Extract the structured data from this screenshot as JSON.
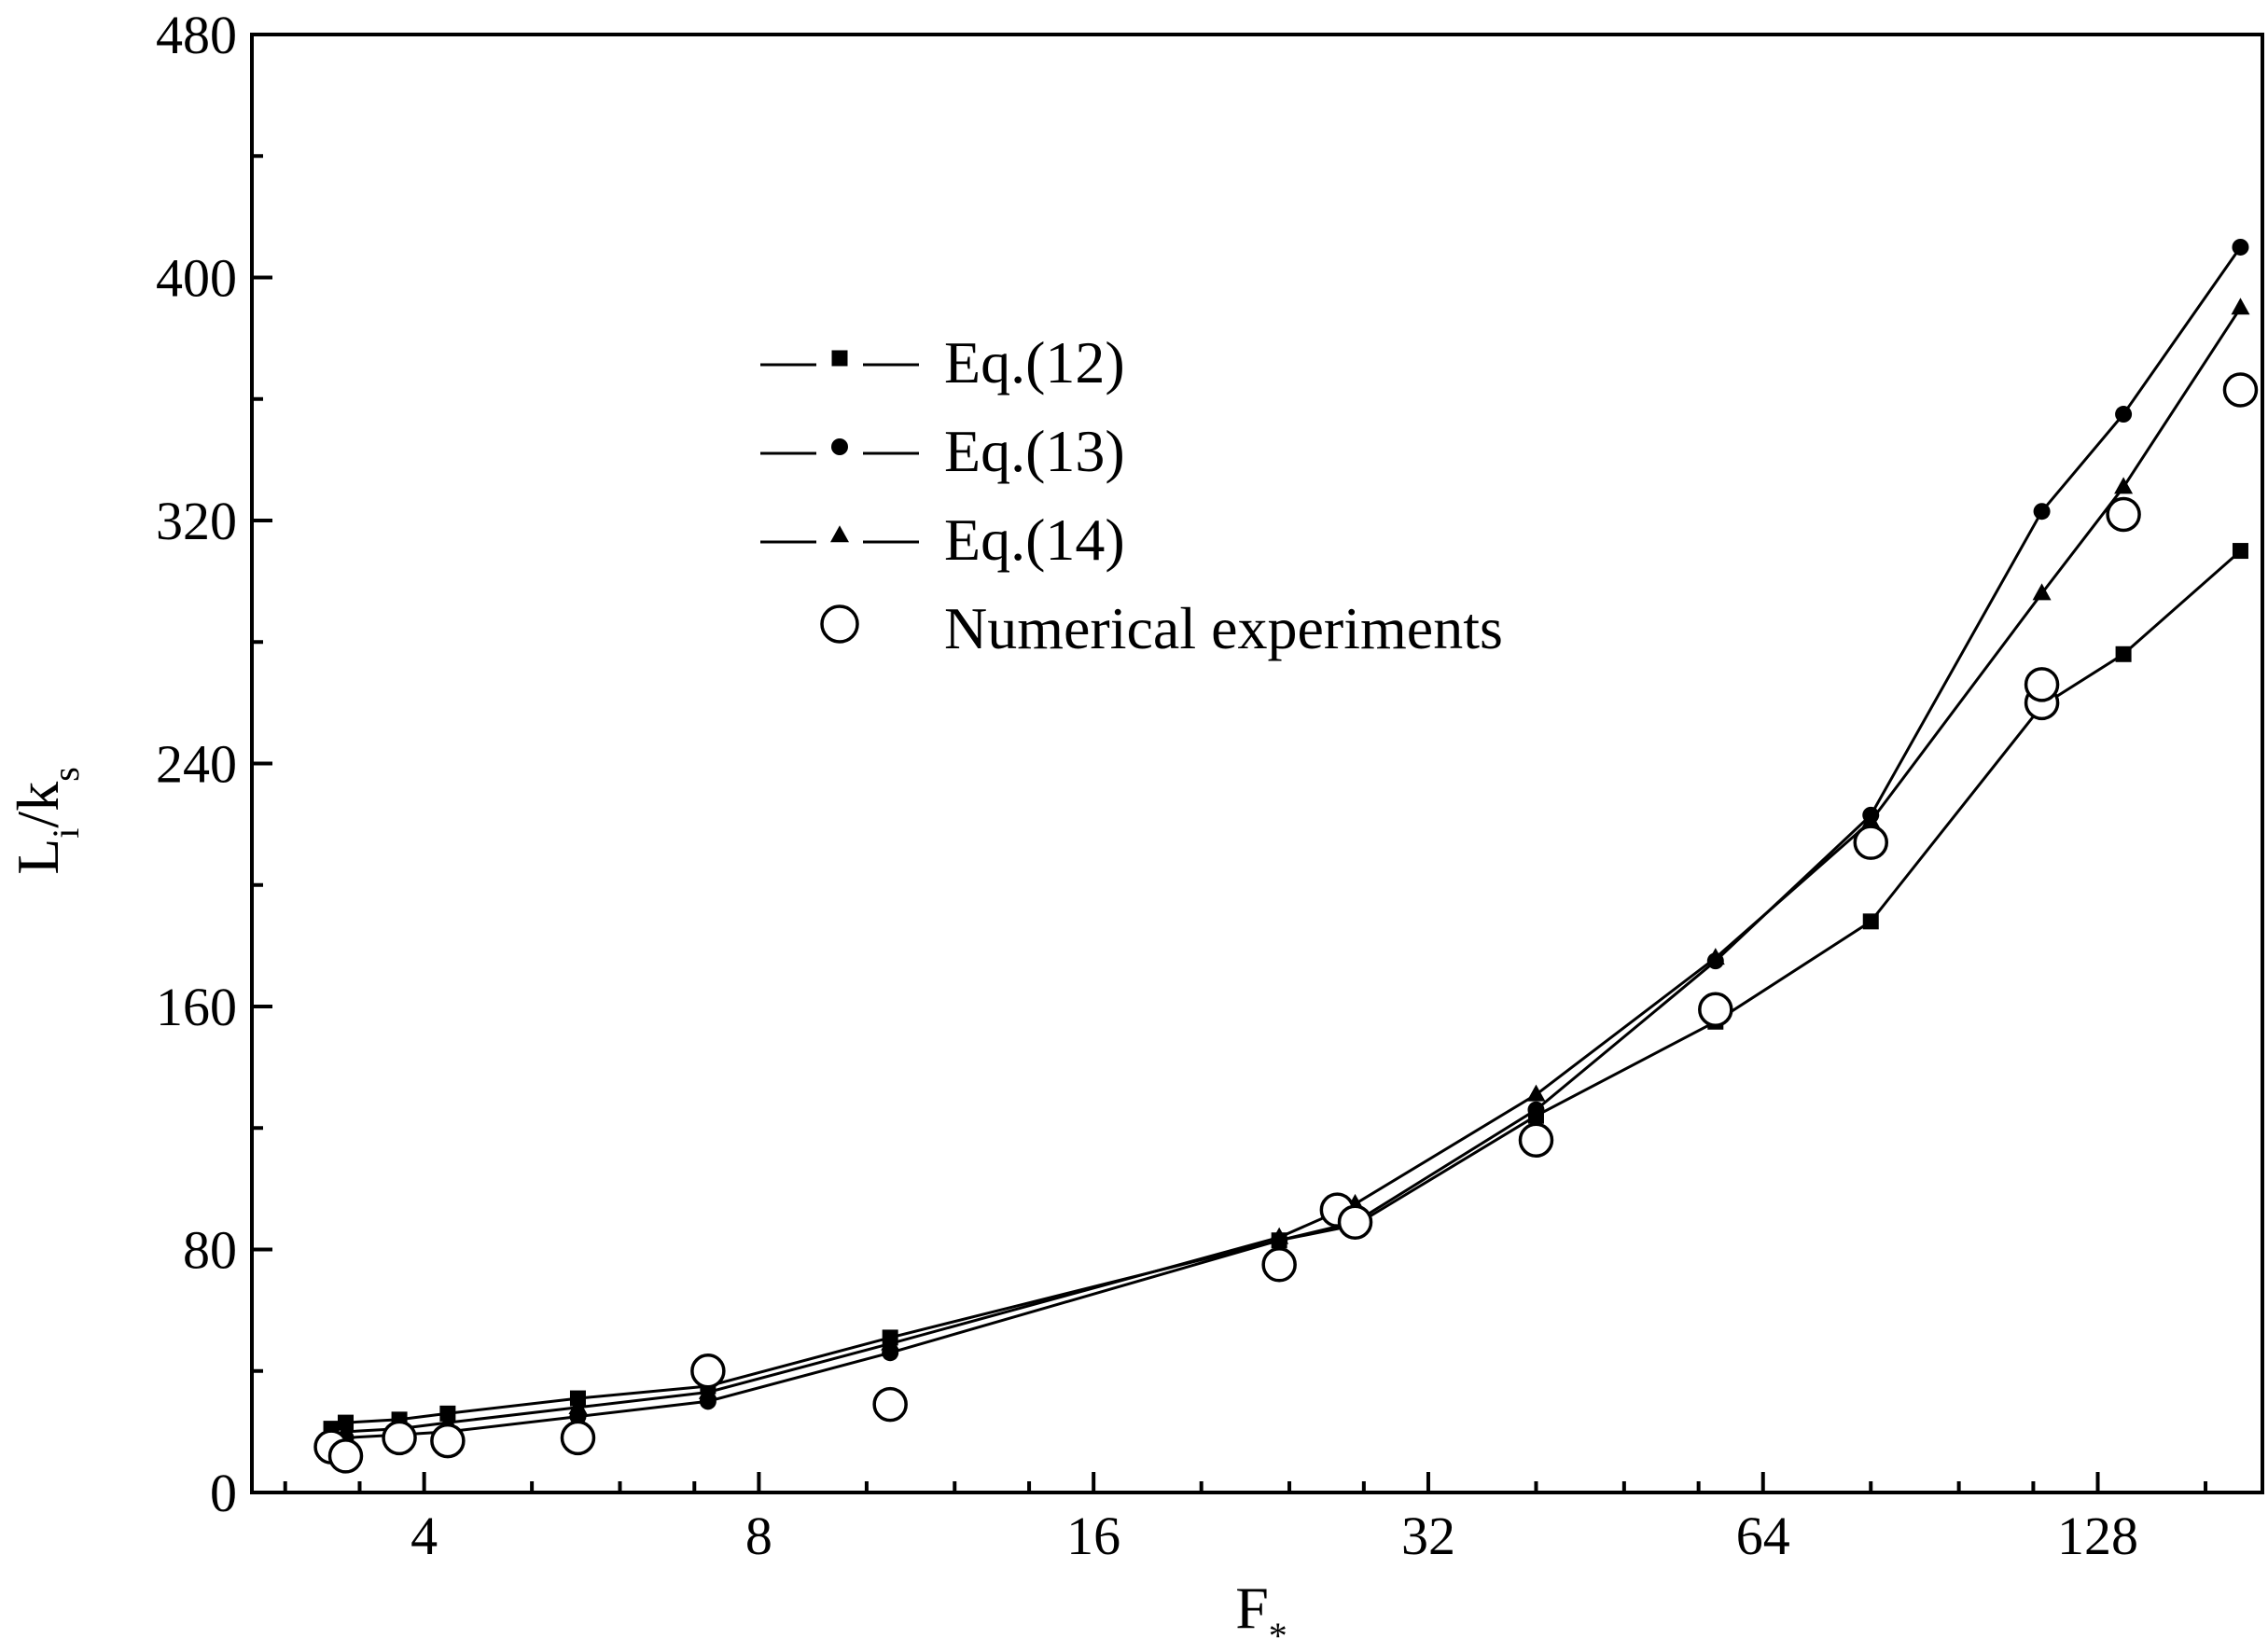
{
  "chart_data": {
    "type": "line",
    "x_scale": "log2",
    "xlim": [
      2.8,
      180
    ],
    "ylim": [
      0,
      480
    ],
    "x_ticks": [
      4,
      8,
      16,
      32,
      64,
      128
    ],
    "x_tick_labels": [
      "4",
      "8",
      "16",
      "32",
      "64",
      "128"
    ],
    "y_ticks": [
      0,
      80,
      160,
      240,
      320,
      400,
      480
    ],
    "y_tick_labels": [
      "0",
      "80",
      "160",
      "240",
      "320",
      "400",
      "480"
    ],
    "xlabel": {
      "main": "F",
      "sub": "*"
    },
    "ylabel": {
      "main": "L",
      "sub1": "i",
      "mid": "/k",
      "sub2": "s"
    },
    "legend_position": "upper-center",
    "series": [
      {
        "name": "Eq.(12)",
        "marker": "square",
        "line": true,
        "points": [
          [
            3.3,
            21
          ],
          [
            3.4,
            23
          ],
          [
            3.8,
            24
          ],
          [
            4.2,
            26
          ],
          [
            5.5,
            31
          ],
          [
            7.2,
            35
          ],
          [
            10.5,
            51
          ],
          [
            23.5,
            83
          ],
          [
            27.5,
            88
          ],
          [
            40,
            124
          ],
          [
            58,
            155
          ],
          [
            80,
            188
          ],
          [
            114,
            259
          ],
          [
            135,
            276
          ],
          [
            172,
            310
          ]
        ]
      },
      {
        "name": "Eq.(13)",
        "marker": "circle",
        "line": true,
        "points": [
          [
            3.3,
            17
          ],
          [
            3.4,
            18
          ],
          [
            3.8,
            19
          ],
          [
            4.2,
            20
          ],
          [
            5.5,
            25
          ],
          [
            7.2,
            30
          ],
          [
            10.5,
            46
          ],
          [
            23.5,
            83
          ],
          [
            27.5,
            89
          ],
          [
            40,
            126
          ],
          [
            58,
            175
          ],
          [
            80,
            223
          ],
          [
            114,
            323
          ],
          [
            135,
            355
          ],
          [
            172,
            410
          ]
        ]
      },
      {
        "name": "Eq.(14)",
        "marker": "triangle",
        "line": true,
        "points": [
          [
            3.3,
            19
          ],
          [
            3.4,
            20
          ],
          [
            3.8,
            21
          ],
          [
            4.2,
            23
          ],
          [
            5.5,
            28
          ],
          [
            7.2,
            33
          ],
          [
            10.5,
            49
          ],
          [
            23.5,
            84
          ],
          [
            27.5,
            95
          ],
          [
            40,
            131
          ],
          [
            58,
            176
          ],
          [
            80,
            221
          ],
          [
            114,
            296
          ],
          [
            135,
            331
          ],
          [
            172,
            390
          ]
        ]
      },
      {
        "name": "Numerical experiments",
        "marker": "open-circle",
        "line": false,
        "points": [
          [
            3.3,
            15
          ],
          [
            3.4,
            12
          ],
          [
            3.8,
            18
          ],
          [
            4.2,
            17
          ],
          [
            5.5,
            18
          ],
          [
            7.2,
            40
          ],
          [
            10.5,
            29
          ],
          [
            23.5,
            75
          ],
          [
            26.5,
            93
          ],
          [
            27.5,
            89
          ],
          [
            40,
            116
          ],
          [
            58,
            159
          ],
          [
            80,
            214
          ],
          [
            114,
            260
          ],
          [
            114,
            266
          ],
          [
            135,
            322
          ],
          [
            172,
            363
          ]
        ]
      }
    ]
  }
}
